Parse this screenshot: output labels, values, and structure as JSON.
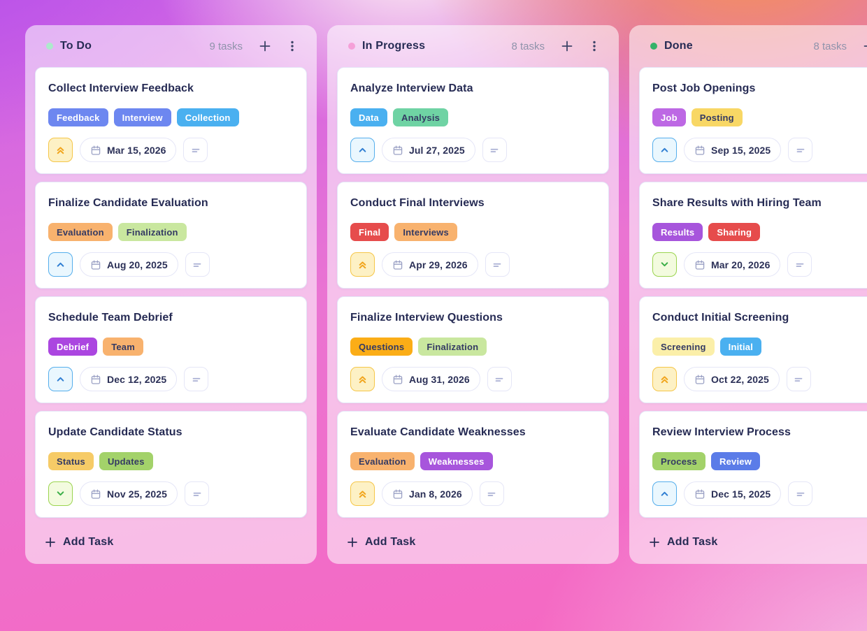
{
  "board": {
    "columns": [
      {
        "name": "To Do",
        "dot_color": "#aceacb",
        "count": "9 tasks",
        "add_task": "Add Task",
        "tasks": [
          {
            "title": "Collect Interview Feedback",
            "tags": [
              {
                "label": "Feedback",
                "color": "indigo"
              },
              {
                "label": "Interview",
                "color": "indigo"
              },
              {
                "label": "Collection",
                "color": "sky"
              }
            ],
            "priority": "high",
            "due": "Mar 15, 2026"
          },
          {
            "title": "Finalize Candidate Evaluation",
            "tags": [
              {
                "label": "Evaluation",
                "color": "sandy"
              },
              {
                "label": "Finalization",
                "color": "lightgreen"
              }
            ],
            "priority": "medium",
            "due": "Aug 20, 2025"
          },
          {
            "title": "Schedule Team Debrief",
            "tags": [
              {
                "label": "Debrief",
                "color": "purple"
              },
              {
                "label": "Team",
                "color": "sandy"
              }
            ],
            "priority": "medium",
            "due": "Dec 12, 2025"
          },
          {
            "title": "Update Candidate Status",
            "tags": [
              {
                "label": "Status",
                "color": "amber"
              },
              {
                "label": "Updates",
                "color": "green"
              }
            ],
            "priority": "low",
            "due": "Nov 25, 2025"
          }
        ]
      },
      {
        "name": "In Progress",
        "dot_color": "#f5a0d8",
        "count": "8 tasks",
        "add_task": "Add Task",
        "tasks": [
          {
            "title": "Analyze Interview Data",
            "tags": [
              {
                "label": "Data",
                "color": "sky"
              },
              {
                "label": "Analysis",
                "color": "mint"
              }
            ],
            "priority": "medium",
            "due": "Jul 27, 2025"
          },
          {
            "title": "Conduct Final Interviews",
            "tags": [
              {
                "label": "Final",
                "color": "red"
              },
              {
                "label": "Interviews",
                "color": "sandy"
              }
            ],
            "priority": "high",
            "due": "Apr 29, 2026"
          },
          {
            "title": "Finalize Interview Questions",
            "tags": [
              {
                "label": "Questions",
                "color": "vividamber"
              },
              {
                "label": "Finalization",
                "color": "lightgreen"
              }
            ],
            "priority": "high",
            "due": "Aug 31, 2026"
          },
          {
            "title": "Evaluate Candidate Weaknesses",
            "tags": [
              {
                "label": "Evaluation",
                "color": "sandy"
              },
              {
                "label": "Weaknesses",
                "color": "violet"
              }
            ],
            "priority": "high",
            "due": "Jan 8, 2026"
          }
        ]
      },
      {
        "name": "Done",
        "dot_color": "#35b269",
        "count": "8 tasks",
        "add_task": "Add Task",
        "tasks": [
          {
            "title": "Post Job Openings",
            "tags": [
              {
                "label": "Job",
                "color": "lilac"
              },
              {
                "label": "Posting",
                "color": "yellow"
              }
            ],
            "priority": "medium",
            "due": "Sep 15, 2025"
          },
          {
            "title": "Share Results with Hiring Team",
            "tags": [
              {
                "label": "Results",
                "color": "violet"
              },
              {
                "label": "Sharing",
                "color": "red"
              }
            ],
            "priority": "low",
            "due": "Mar 20, 2026"
          },
          {
            "title": "Conduct Initial Screening",
            "tags": [
              {
                "label": "Screening",
                "color": "paleyellow"
              },
              {
                "label": "Initial",
                "color": "sky"
              }
            ],
            "priority": "high",
            "due": "Oct 22, 2025"
          },
          {
            "title": "Review Interview Process",
            "tags": [
              {
                "label": "Process",
                "color": "green"
              },
              {
                "label": "Review",
                "color": "blue"
              }
            ],
            "priority": "medium",
            "due": "Dec 15, 2025"
          }
        ]
      }
    ]
  },
  "tag_colors": {
    "indigo": {
      "bg": "#6d87f0",
      "fg": "#ffffff"
    },
    "sky": {
      "bg": "#4ab0f0",
      "fg": "#ffffff"
    },
    "blue": {
      "bg": "#5b7ce8",
      "fg": "#ffffff"
    },
    "sandy": {
      "bg": "#f8b26e",
      "fg": "#343a63"
    },
    "lightgreen": {
      "bg": "#c9e79f",
      "fg": "#343a63"
    },
    "purple": {
      "bg": "#ab46e0",
      "fg": "#ffffff"
    },
    "violet": {
      "bg": "#a755dc",
      "fg": "#ffffff"
    },
    "lilac": {
      "bg": "#bd68e4",
      "fg": "#ffffff"
    },
    "amber": {
      "bg": "#f6cb67",
      "fg": "#343a63"
    },
    "vividamber": {
      "bg": "#fbad17",
      "fg": "#343a63"
    },
    "yellow": {
      "bg": "#f8d765",
      "fg": "#343a63"
    },
    "paleyellow": {
      "bg": "#fbefa9",
      "fg": "#343a63"
    },
    "green": {
      "bg": "#a3d26a",
      "fg": "#343a63"
    },
    "mint": {
      "bg": "#6fd3a4",
      "fg": "#343a63"
    },
    "red": {
      "bg": "#e64c4c",
      "fg": "#ffffff"
    }
  },
  "priorities": {
    "high": {
      "bg": "#fdf1c5",
      "border": "#f5c648",
      "color": "#f1a51d"
    },
    "medium": {
      "bg": "#eaf7fe",
      "border": "#55aeec",
      "color": "#2f7ed2"
    },
    "low": {
      "bg": "#f3fbdf",
      "border": "#9bd44f",
      "color": "#3aae47"
    }
  }
}
